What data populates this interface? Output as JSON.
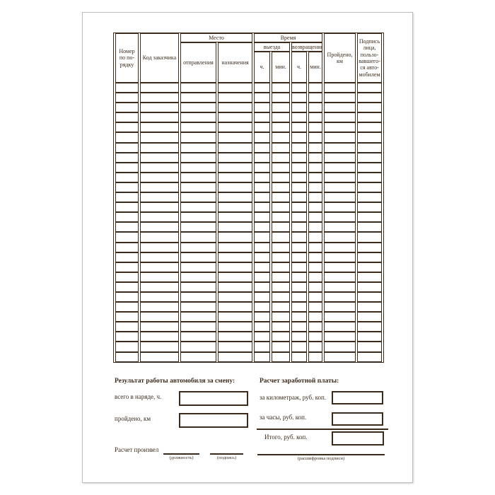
{
  "document": {
    "kind": "waybill-form-page"
  },
  "table": {
    "body_row_count": 28,
    "column_count": 10,
    "header": {
      "col_number": "Номер\nпо по-\nрядку",
      "col_customer_code": "Код заказчика",
      "group_place": "Место",
      "col_departure": "отправления",
      "col_destination": "назначения",
      "group_time": "Время",
      "group_time_out": "выезда",
      "group_time_return": "возвращения",
      "col_hours_out": "ч.",
      "col_minutes_out": "мин.",
      "col_hours_return": "ч.",
      "col_minutes_return": "мин.",
      "col_distance": "Пройдено,\nкм",
      "col_signature": "Подпись\nлица,\nпользо-\nвавшего-\nся авто-\nмобилем"
    }
  },
  "results_section": {
    "title": "Результат работы автомобиля за смену:",
    "rows": [
      {
        "label": "всего в наряде, ч.",
        "value": ""
      },
      {
        "label": "пройдено, км",
        "value": ""
      }
    ]
  },
  "salary_section": {
    "title": "Расчет заработной платы:",
    "rows": [
      {
        "label": "за километраж, руб. коп.",
        "value": ""
      },
      {
        "label": "за часы, руб. коп.",
        "value": ""
      },
      {
        "label": "Итого, руб. коп.",
        "value": ""
      }
    ]
  },
  "footer": {
    "calculated_by_label": "Расчет произвел",
    "position_caption": "(должность)",
    "signature_caption": "(подпись)",
    "signature_name_caption": "(расшифровка подписи)"
  },
  "colors": {
    "ink": "#3c2b1b",
    "page_border": "#bdbdbd",
    "page_background": "#ffffff"
  }
}
